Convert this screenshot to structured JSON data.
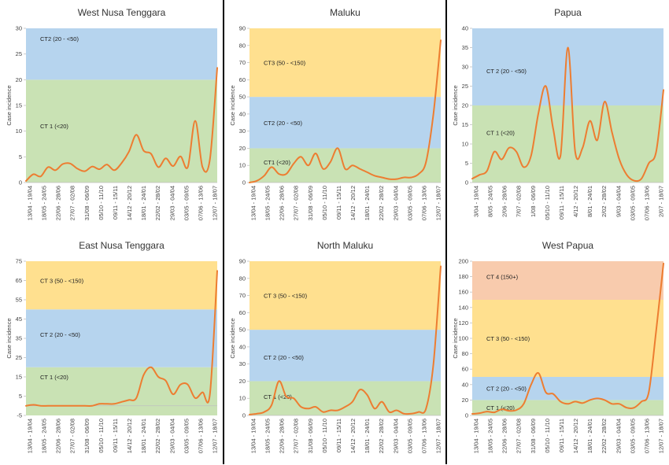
{
  "colors": {
    "line": "#ED7D31",
    "bands": [
      "#C9E2B4",
      "#B6D4EE",
      "#FFE08F",
      "#F8CBAD"
    ],
    "axis": "#BFBFBF"
  },
  "x_categories": [
    "13/04 - 19/04",
    "18/05 - 24/05",
    "22/06 - 28/06",
    "27/07 - 02/08",
    "31/08 - 06/09",
    "05/10 - 11/10",
    "09/11 - 15/11",
    "14/12 - 20/12",
    "18/01 - 24/01",
    "22/02 - 28/02",
    "29/03 - 04/04",
    "03/05 - 09/05",
    "07/06 - 13/06",
    "12/07 - 18/07"
  ],
  "chart_data": [
    {
      "type": "line",
      "title": "West Nusa Tenggara",
      "ylabel": "Case incidence",
      "ylim": [
        0,
        30
      ],
      "yticks": [
        "0",
        "5",
        "10",
        "15",
        "20",
        "25",
        "30"
      ],
      "bands": [
        {
          "from": 0,
          "to": 20,
          "label": "CT 1 (<20)",
          "label_y": 11
        },
        {
          "from": 20,
          "to": 30,
          "label": "CT2 (20 - <50)",
          "label_y": 28
        }
      ],
      "xticks": [
        "13/04 - 19/04",
        "18/05 - 24/05",
        "22/06 - 28/06",
        "27/07 - 02/08",
        "31/08 - 06/09",
        "05/10 - 11/10",
        "09/11 - 15/11",
        "14/12 - 20/12",
        "18/01 - 24/01",
        "22/02 - 28/02",
        "29/03 - 04/04",
        "03/05 - 09/05",
        "07/06 - 13/06",
        "12/07 - 18/07"
      ],
      "x": [
        0,
        0.5,
        1,
        1.5,
        2,
        2.5,
        3,
        3.5,
        4,
        4.5,
        5,
        5.5,
        6,
        6.5,
        7,
        7.5,
        8,
        8.5,
        9,
        9.5,
        10,
        10.5,
        11,
        11.5,
        12,
        12.5,
        13
      ],
      "y": [
        0.3,
        1.6,
        1.2,
        3.0,
        2.4,
        3.6,
        3.7,
        2.7,
        2.2,
        3.1,
        2.6,
        3.5,
        2.4,
        3.8,
        6.0,
        9.3,
        6.2,
        5.6,
        3.0,
        4.7,
        3.2,
        5.1,
        3.0,
        12.0,
        3.0,
        4.5,
        22.3
      ]
    },
    {
      "type": "line",
      "title": "Maluku",
      "ylabel": "Case incidence",
      "ylim": [
        0,
        90
      ],
      "yticks": [
        "0",
        "10",
        "20",
        "30",
        "40",
        "50",
        "60",
        "70",
        "80",
        "90"
      ],
      "bands": [
        {
          "from": 0,
          "to": 20,
          "label": "CT1 (<20)",
          "label_y": 12
        },
        {
          "from": 20,
          "to": 50,
          "label": "CT2 (20 - <50)",
          "label_y": 35
        },
        {
          "from": 50,
          "to": 90,
          "label": "CT3 (50 - <150)",
          "label_y": 70
        }
      ],
      "xticks": [
        "13/04 - 19/04",
        "18/05 - 24/05",
        "22/06 - 28/06",
        "27/07 - 02/08",
        "31/08 - 06/09",
        "05/10 - 11/10",
        "09/11 - 15/11",
        "14/12 - 20/12",
        "18/01 - 24/01",
        "22/02 - 28/02",
        "29/03 - 04/04",
        "03/05 - 09/05",
        "07/06 - 13/06",
        "12/07 - 18/07"
      ],
      "x": [
        0,
        0.5,
        1,
        1.5,
        2,
        2.5,
        3,
        3.5,
        4,
        4.5,
        5,
        5.5,
        6,
        6.5,
        7,
        7.5,
        8,
        8.5,
        9,
        9.5,
        10,
        10.5,
        11,
        11.5,
        12,
        12.5,
        13
      ],
      "y": [
        0,
        1,
        4,
        9,
        5,
        5,
        11,
        15,
        10,
        17,
        8,
        12,
        20,
        8,
        10,
        8,
        6,
        4,
        3,
        2,
        2,
        3,
        3,
        5,
        12,
        40,
        83
      ]
    },
    {
      "type": "line",
      "title": "Papua",
      "ylabel": "Case incidence",
      "ylim": [
        0,
        40
      ],
      "yticks": [
        "0",
        "5",
        "10",
        "15",
        "20",
        "25",
        "30",
        "35",
        "40"
      ],
      "bands": [
        {
          "from": 0,
          "to": 20,
          "label": "CT 1 (<20)",
          "label_y": 13
        },
        {
          "from": 20,
          "to": 40,
          "label": "CT 2 (20 - <50)",
          "label_y": 29
        }
      ],
      "xticks": [
        "3/04 - 19/04",
        "8/05 - 24/05",
        "2/06 - 28/06",
        "7/07 - 02/08",
        "1/08 - 06/09",
        "05/10 - 11/10",
        "09/11 - 15/11",
        "4/12 - 20/12",
        "8/01 - 24/01",
        "2/02 - 28/02",
        "9/03 - 04/04",
        "03/05 - 09/05",
        "07/06 - 13/06",
        "2/07 - 18/07"
      ],
      "x": [
        0,
        0.5,
        1,
        1.5,
        2,
        2.5,
        3,
        3.5,
        4,
        4.5,
        5,
        5.5,
        6,
        6.5,
        7,
        7.5,
        8,
        8.5,
        9,
        9.5,
        10,
        10.5,
        11,
        11.5,
        12,
        12.5,
        13
      ],
      "y": [
        1,
        2,
        3,
        8,
        6,
        9,
        8,
        4,
        7,
        18,
        25,
        14,
        7,
        35,
        8,
        9,
        16,
        11,
        21,
        13,
        6,
        2,
        0.5,
        1,
        5,
        8,
        24
      ]
    },
    {
      "type": "line",
      "title": "East Nusa Tenggara",
      "ylabel": "Case incidence",
      "ylim": [
        -5,
        75
      ],
      "yticks": [
        "-5",
        "5",
        "15",
        "25",
        "35",
        "45",
        "55",
        "65",
        "75"
      ],
      "bands": [
        {
          "from": -5,
          "to": 20,
          "label": "CT 1 (<20)",
          "label_y": 15
        },
        {
          "from": 20,
          "to": 50,
          "label": "CT 2 (20 - <50)",
          "label_y": 37
        },
        {
          "from": 50,
          "to": 75,
          "label": "CT 3 (50 - <150)",
          "label_y": 65
        }
      ],
      "xticks": [
        "13/04 - 19/04",
        "18/05 - 24/05",
        "22/06 - 28/06",
        "27/07 - 02/08",
        "31/08 - 06/09",
        "05/10 - 11/10",
        "09/11 - 15/11",
        "14/12 - 20/12",
        "18/01 - 24/01",
        "22/02 - 28/02",
        "29/03 - 04/04",
        "03/05 - 09/05",
        "07/06 - 13/06",
        "12/07 - 18/07"
      ],
      "x": [
        0,
        0.5,
        1,
        1.5,
        2,
        2.5,
        3,
        3.5,
        4,
        4.5,
        5,
        5.5,
        6,
        6.5,
        7,
        7.5,
        8,
        8.5,
        9,
        9.5,
        10,
        10.5,
        11,
        11.5,
        12,
        12.5,
        13
      ],
      "y": [
        0,
        0.5,
        0,
        0,
        0,
        0,
        0,
        0,
        0,
        0,
        1,
        1,
        1,
        2,
        3,
        4,
        16,
        20,
        15,
        13,
        6,
        11,
        11,
        4,
        7,
        6,
        70
      ]
    },
    {
      "type": "line",
      "title": "North Maluku",
      "ylabel": "Case incidence",
      "ylim": [
        0,
        90
      ],
      "yticks": [
        "0",
        "10",
        "20",
        "30",
        "40",
        "50",
        "60",
        "70",
        "80",
        "90"
      ],
      "bands": [
        {
          "from": 0,
          "to": 20,
          "label": "CT 1 (<20)",
          "label_y": 11
        },
        {
          "from": 20,
          "to": 50,
          "label": "CT 2 (20 - <50)",
          "label_y": 34
        },
        {
          "from": 50,
          "to": 90,
          "label": "CT 3 (50 - <150)",
          "label_y": 70
        }
      ],
      "xticks": [
        "13/04 - 19/04",
        "18/05 - 24/05",
        "22/06 - 28/06",
        "27/07 - 02/08",
        "31/08 - 06/09",
        "05/10 - 11/10",
        "09/11 - 15/11",
        "14/12 - 20/12",
        "18/01 - 24/01",
        "22/02 - 28/02",
        "29/03 - 04/04",
        "03/05 - 09/05",
        "07/06 - 13/06",
        "12/07 - 18/07"
      ],
      "x": [
        0,
        0.5,
        1,
        1.5,
        2,
        2.5,
        3,
        3.5,
        4,
        4.5,
        5,
        5.5,
        6,
        6.5,
        7,
        7.5,
        8,
        8.5,
        9,
        9.5,
        10,
        10.5,
        11,
        11.5,
        12,
        12.5,
        13
      ],
      "y": [
        0.5,
        1,
        2,
        6,
        20,
        11,
        10,
        5,
        4,
        5,
        2,
        3,
        3,
        5,
        8,
        15,
        12,
        4,
        8,
        2,
        3,
        1,
        1,
        2,
        4,
        30,
        87
      ]
    },
    {
      "type": "line",
      "title": "West Papua",
      "ylabel": "Case incidence",
      "ylim": [
        0,
        200
      ],
      "yticks": [
        "0",
        "20",
        "40",
        "60",
        "80",
        "100",
        "120",
        "140",
        "160",
        "180",
        "200"
      ],
      "bands": [
        {
          "from": 0,
          "to": 20,
          "label": "CT 1 (<20)",
          "label_y": 10
        },
        {
          "from": 20,
          "to": 50,
          "label": "CT 2 (20 - <50)",
          "label_y": 35
        },
        {
          "from": 50,
          "to": 150,
          "label": "CT 3 (50 - <150)",
          "label_y": 100
        },
        {
          "from": 150,
          "to": 200,
          "label": "CT 4 (150+)",
          "label_y": 180
        }
      ],
      "xticks": [
        "13/04 - 19/04",
        "18/05 - 24/05",
        "22/06 - 28/06",
        "27/07 - 02/08",
        "31/08 - 06/09",
        "05/10 - 11/10",
        "09/11 - 15/11",
        "14/12 - 20/12",
        "18/01 - 24/01",
        "22/02 - 28/02",
        "29/03 - 04/04",
        "03/05 - 09/05",
        "07/06 - 13/06",
        "12/07 - 18/07"
      ],
      "x": [
        0,
        0.5,
        1,
        1.5,
        2,
        2.5,
        3,
        3.5,
        4,
        4.5,
        5,
        5.5,
        6,
        6.5,
        7,
        7.5,
        8,
        8.5,
        9,
        9.5,
        10,
        10.5,
        11,
        11.5,
        12,
        12.5,
        13
      ],
      "y": [
        2,
        3,
        5,
        4,
        8,
        6,
        7,
        15,
        40,
        55,
        30,
        28,
        18,
        15,
        18,
        16,
        20,
        22,
        20,
        15,
        15,
        10,
        10,
        18,
        30,
        110,
        197
      ]
    }
  ]
}
